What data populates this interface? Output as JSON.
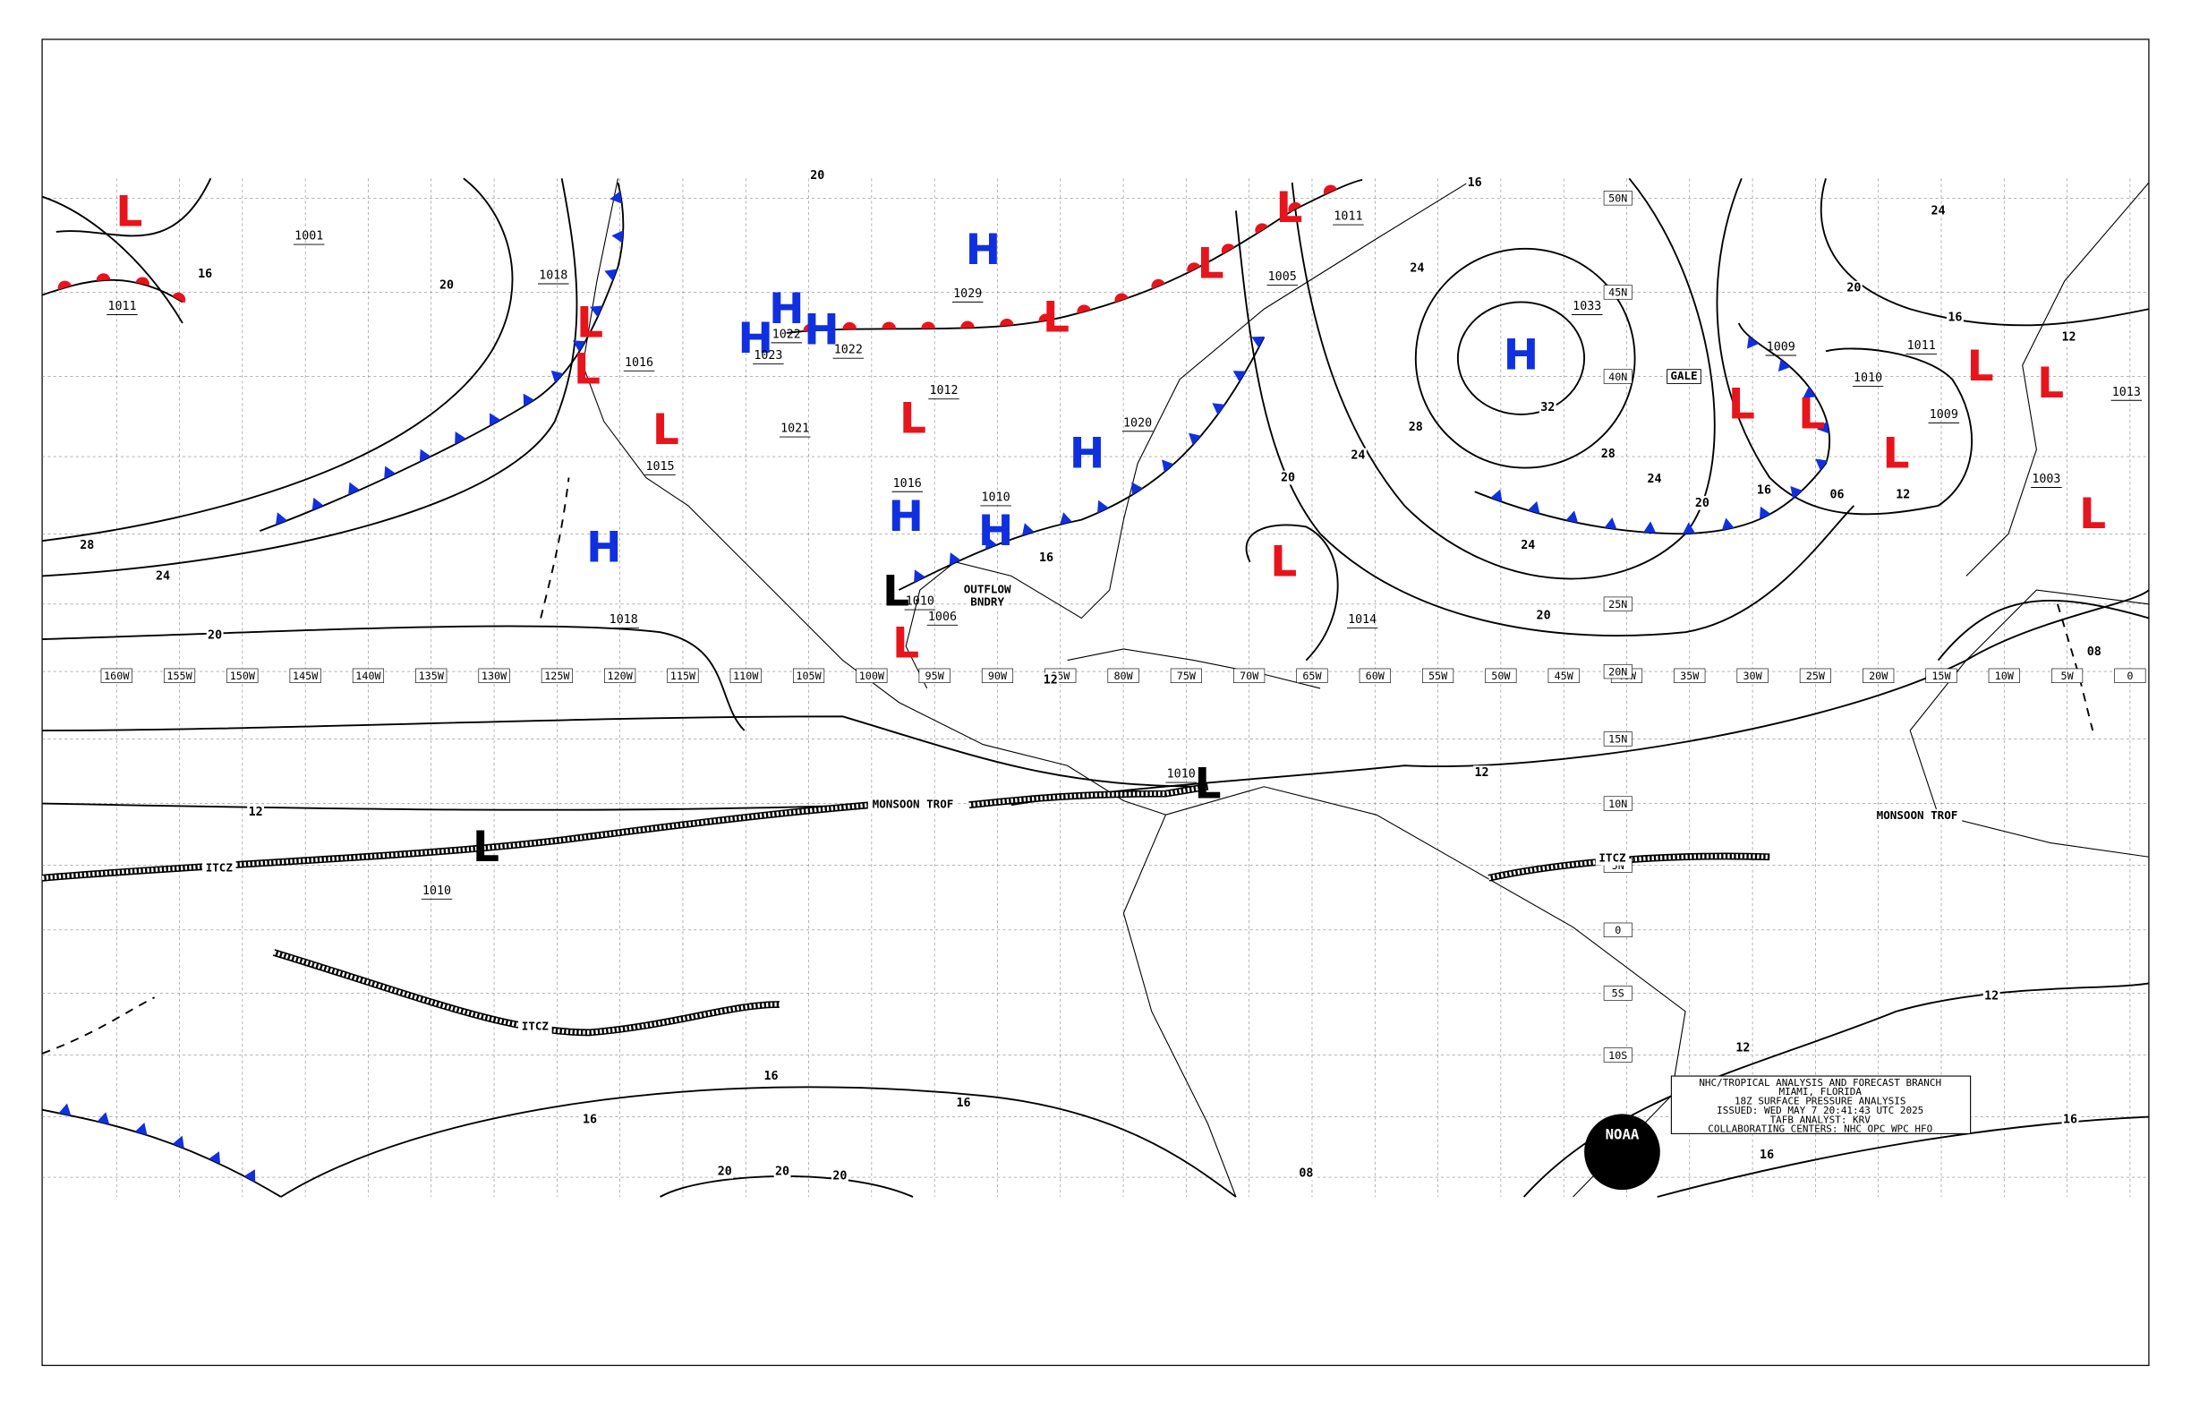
{
  "map": {
    "longitude_labels": [
      "160W",
      "155W",
      "150W",
      "145W",
      "140W",
      "135W",
      "130W",
      "125W",
      "120W",
      "115W",
      "110W",
      "105W",
      "100W",
      "95W",
      "90W",
      "85W",
      "80W",
      "75W",
      "70W",
      "65W",
      "60W",
      "55W",
      "50W",
      "45W",
      "40W",
      "35W",
      "30W",
      "25W",
      "20W",
      "15W",
      "10W",
      "5W",
      "0"
    ],
    "latitude_labels": [
      "50N",
      "45N",
      "40N",
      "25N",
      "20N",
      "15N",
      "10N",
      "5N",
      "0",
      "5S",
      "10S"
    ],
    "centers": [
      {
        "symbol": "L",
        "color": "#e8141c"
      },
      {
        "symbol": "L",
        "color": "#e8141c"
      },
      {
        "symbol": "L",
        "color": "#e8141c"
      },
      {
        "symbol": "L",
        "color": "#e8141c"
      },
      {
        "symbol": "L",
        "color": "#e8141c"
      },
      {
        "symbol": "L",
        "color": "#e8141c"
      },
      {
        "symbol": "L",
        "color": "#e8141c"
      },
      {
        "symbol": "L",
        "color": "#e8141c"
      },
      {
        "symbol": "L",
        "color": "#e8141c"
      },
      {
        "symbol": "L",
        "color": "#e8141c"
      },
      {
        "symbol": "L",
        "color": "#e8141c"
      },
      {
        "symbol": "L",
        "color": "#e8141c"
      },
      {
        "symbol": "L",
        "color": "#e8141c"
      },
      {
        "symbol": "L",
        "color": "#e8141c"
      },
      {
        "symbol": "L",
        "color": "#e8141c"
      },
      {
        "symbol": "L",
        "color": "#e8141c"
      },
      {
        "symbol": "H",
        "color": "#1030e0"
      },
      {
        "symbol": "H",
        "color": "#1030e0"
      },
      {
        "symbol": "H",
        "color": "#1030e0"
      },
      {
        "symbol": "H",
        "color": "#1030e0"
      },
      {
        "symbol": "H",
        "color": "#1030e0"
      },
      {
        "symbol": "H",
        "color": "#1030e0"
      },
      {
        "symbol": "H",
        "color": "#1030e0"
      },
      {
        "symbol": "H",
        "color": "#1030e0"
      },
      {
        "symbol": "H",
        "color": "#1030e0"
      },
      {
        "symbol": "L",
        "color": "#000000"
      },
      {
        "symbol": "L",
        "color": "#000000"
      },
      {
        "symbol": "L",
        "color": "#000000"
      }
    ],
    "pressure_labels": [
      "1001",
      "1011",
      "1018",
      "1016",
      "1015",
      "1018",
      "1010",
      "1022",
      "1023",
      "1022",
      "1021",
      "1029",
      "1012",
      "1016",
      "1010",
      "1020",
      "1010",
      "1006",
      "1014",
      "1010",
      "1033",
      "1009",
      "1011",
      "1010",
      "1009",
      "1003",
      "1005",
      "1011",
      "1013"
    ],
    "isobar_labels": [
      "20",
      "16",
      "16",
      "20",
      "28",
      "24",
      "20",
      "24",
      "28",
      "32",
      "28",
      "24",
      "20",
      "24",
      "20",
      "24",
      "20",
      "16",
      "06",
      "12",
      "16",
      "20",
      "24",
      "12",
      "08",
      "12",
      "16",
      "12",
      "12",
      "16",
      "16",
      "16",
      "20",
      "20",
      "20",
      "12",
      "12",
      "16",
      "16",
      "08"
    ],
    "annotations": [
      "MONSOON TROF",
      "MONSOON TROF",
      "ITCZ",
      "ITCZ",
      "ITCZ",
      "OUTFLOW",
      "BNDRY",
      "GALE"
    ],
    "info_box": [
      "NHC/TROPICAL ANALYSIS AND FORECAST BRANCH",
      "MIAMI, FLORIDA",
      "18Z SURFACE PRESSURE ANALYSIS",
      "ISSUED: WED MAY 7 20:41:43 UTC 2025",
      "TAFB ANALYST: KRV",
      "COLLABORATING CENTERS: NHC OPC WPC HFO"
    ],
    "logo": "NOAA"
  }
}
